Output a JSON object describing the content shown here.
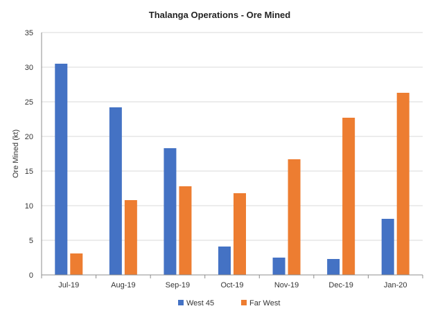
{
  "chart_data": {
    "type": "bar",
    "title": "Thalanga Operations - Ore Mined",
    "xlabel": "",
    "ylabel": "Ore Mined (kt)",
    "ylim": [
      0,
      35
    ],
    "yticks": [
      0,
      5,
      10,
      15,
      20,
      25,
      30,
      35
    ],
    "grid": true,
    "legend_position": "bottom",
    "categories": [
      "Jul-19",
      "Aug-19",
      "Sep-19",
      "Oct-19",
      "Nov-19",
      "Dec-19",
      "Jan-20"
    ],
    "series": [
      {
        "name": "West 45",
        "color": "#4472C4",
        "values": [
          30.5,
          24.2,
          18.3,
          4.1,
          2.5,
          2.3,
          8.1
        ]
      },
      {
        "name": "Far West",
        "color": "#ED7D31",
        "values": [
          3.1,
          10.8,
          12.8,
          11.8,
          16.7,
          22.7,
          26.3
        ]
      }
    ]
  }
}
